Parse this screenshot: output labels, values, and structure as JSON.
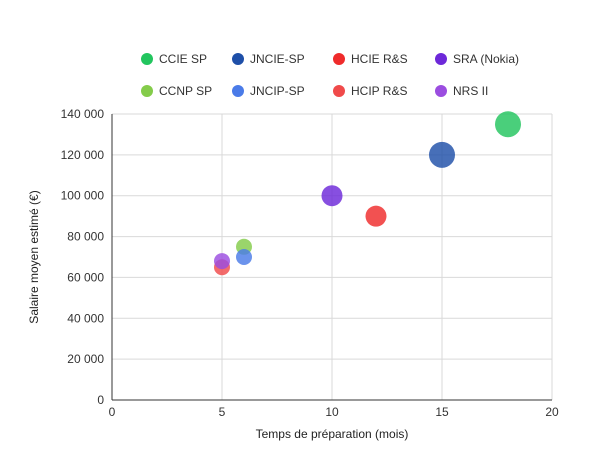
{
  "chart_data": {
    "type": "scatter",
    "subtype": "bubble",
    "title": "",
    "xlabel": "Temps de préparation (mois)",
    "ylabel": "Salaire moyen estimé (€)",
    "xlim": [
      0,
      20
    ],
    "ylim": [
      0,
      140000
    ],
    "xticks": [
      0,
      5,
      10,
      15,
      20
    ],
    "yticks": [
      0,
      20000,
      40000,
      60000,
      80000,
      100000,
      120000,
      140000
    ],
    "xtick_labels": [
      "0",
      "5",
      "10",
      "15",
      "20"
    ],
    "ytick_labels": [
      "0",
      "20 000",
      "40 000",
      "60 000",
      "80 000",
      "100 000",
      "120 000",
      "140 000"
    ],
    "grid": true,
    "legend_position": "top",
    "series": [
      {
        "name": "CCIE SP",
        "color": "#22c55e",
        "points": [
          {
            "x": 18,
            "y": 135000,
            "size": 3
          }
        ]
      },
      {
        "name": "JNCIE-SP",
        "color": "#1e4fa8",
        "points": [
          {
            "x": 15,
            "y": 120000,
            "size": 3
          }
        ]
      },
      {
        "name": "HCIE R&S",
        "color": "#ef2b2b",
        "points": [
          {
            "x": 12,
            "y": 90000,
            "size": 2
          }
        ]
      },
      {
        "name": "SRA (Nokia)",
        "color": "#6d28d9",
        "points": [
          {
            "x": 10,
            "y": 100000,
            "size": 2
          }
        ]
      },
      {
        "name": "CCNP SP",
        "color": "#84cc4a",
        "points": [
          {
            "x": 6,
            "y": 75000,
            "size": 1
          }
        ]
      },
      {
        "name": "JNCIP-SP",
        "color": "#4a7be8",
        "points": [
          {
            "x": 6,
            "y": 70000,
            "size": 1
          }
        ]
      },
      {
        "name": "HCIP R&S",
        "color": "#f04a4a",
        "points": [
          {
            "x": 5,
            "y": 65000,
            "size": 1
          }
        ]
      },
      {
        "name": "NRS II",
        "color": "#9b4de0",
        "points": [
          {
            "x": 5,
            "y": 68000,
            "size": 1
          }
        ]
      }
    ]
  }
}
